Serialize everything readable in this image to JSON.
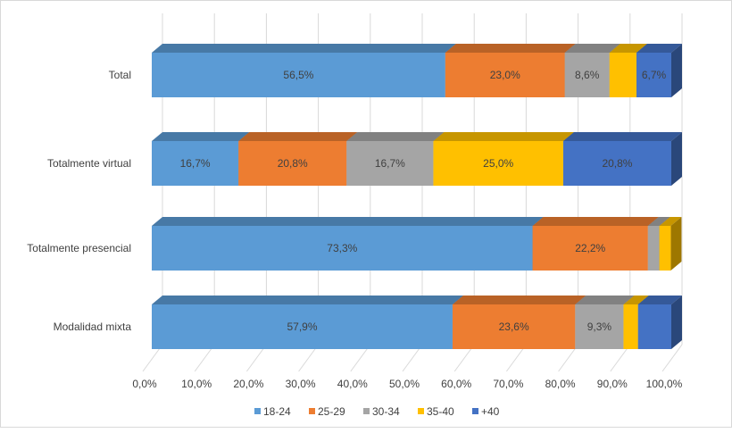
{
  "chart_data": {
    "type": "bar",
    "orientation": "horizontal",
    "stacked": true,
    "style": "3d",
    "categories": [
      "Total",
      "Totalmente virtual",
      "Totalmente presencial",
      "Modalidad mixta"
    ],
    "series": [
      {
        "name": "18-24",
        "color": "#5b9bd5",
        "values": [
          56.5,
          16.7,
          73.3,
          57.9
        ],
        "labels": [
          "56,5%",
          "16,7%",
          "73,3%",
          "57,9%"
        ]
      },
      {
        "name": "25-29",
        "color": "#ed7d31",
        "values": [
          23.0,
          20.8,
          22.2,
          23.6
        ],
        "labels": [
          "23,0%",
          "20,8%",
          "22,2%",
          "23,6%"
        ]
      },
      {
        "name": "30-34",
        "color": "#a5a5a5",
        "values": [
          8.6,
          16.7,
          2.2,
          9.3
        ],
        "labels": [
          "8,6%",
          "16,7%",
          "",
          "9,3%"
        ]
      },
      {
        "name": "35-40",
        "color": "#ffc000",
        "values": [
          5.2,
          25.0,
          2.2,
          2.8
        ],
        "labels": [
          "",
          "25,0%",
          "",
          ""
        ]
      },
      {
        "name": "+40",
        "color": "#4472c4",
        "values": [
          6.7,
          20.8,
          0.0,
          6.4
        ],
        "labels": [
          "6,7%",
          "20,8%",
          "",
          ""
        ]
      }
    ],
    "xlim": [
      0,
      100
    ],
    "xticks": [
      "0,0%",
      "10,0%",
      "20,0%",
      "30,0%",
      "40,0%",
      "50,0%",
      "60,0%",
      "70,0%",
      "80,0%",
      "90,0%",
      "100,0%"
    ],
    "grid": true,
    "legend": "bottom"
  }
}
